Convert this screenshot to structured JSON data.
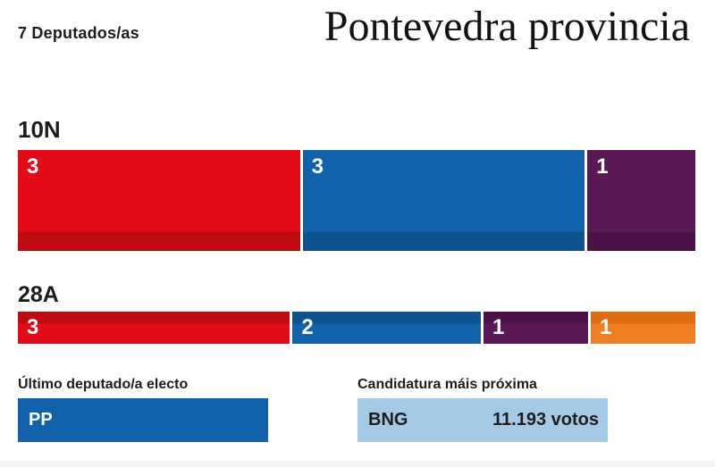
{
  "header": {
    "seats_label": "7 Deputados/as",
    "title": "Pontevedra provincia"
  },
  "chart_data": {
    "type": "bar",
    "variant": "stacked-horizontal-seat-bars",
    "title": "Pontevedra provincia",
    "subtitle": "7 Deputados/as",
    "total_seats": 7,
    "rows": [
      {
        "label": "10N",
        "segments": [
          {
            "color": "red",
            "seats": 3
          },
          {
            "color": "blue",
            "seats": 3
          },
          {
            "color": "purple",
            "seats": 1
          }
        ]
      },
      {
        "label": "28A",
        "segments": [
          {
            "color": "red",
            "seats": 3
          },
          {
            "color": "blue",
            "seats": 2
          },
          {
            "color": "purple",
            "seats": 1
          },
          {
            "color": "orange",
            "seats": 1
          }
        ]
      }
    ],
    "legend_position": "none",
    "grid": false
  },
  "footer": {
    "last_elected": {
      "label": "Último deputado/a electo",
      "party": "PP"
    },
    "closest": {
      "label": "Candidatura máis próxima",
      "party": "BNG",
      "votes": "11.193 votos"
    }
  },
  "colors": {
    "palette": {
      "red": {
        "main": "#e20b17",
        "dark": "#c20a13"
      },
      "blue": {
        "main": "#1162aa",
        "dark": "#0d5390"
      },
      "purple": {
        "main": "#5a1955",
        "dark": "#4a1246"
      },
      "orange": {
        "main": "#ef7d22",
        "dark": "#e06c12"
      }
    },
    "pp_box": "#1162aa",
    "bng_box": "#a5cae5",
    "bottom_strip": "#f3f3f3",
    "text_dark": "#1d1d1b"
  }
}
